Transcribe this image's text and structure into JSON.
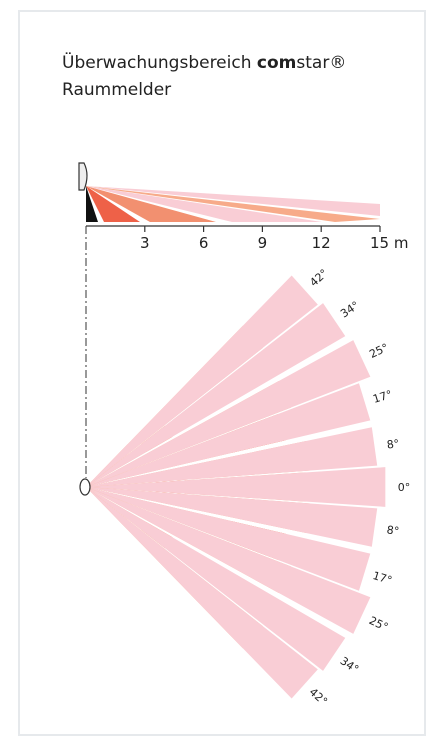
{
  "title": {
    "text": "Überwachungsbereich",
    "brand_bold": "com",
    "brand_rest": "star®",
    "line2": "Raummelder"
  },
  "side_view": {
    "xlim": [
      0,
      15
    ],
    "xticks": [
      3,
      6,
      9,
      12,
      {
        "value": 15,
        "label": "15 m"
      }
    ]
  },
  "top_view": {
    "angles": [
      {
        "value": 42,
        "label": "42°"
      },
      {
        "value": 34,
        "label": "34°"
      },
      {
        "value": 25,
        "label": "25°"
      },
      {
        "value": 17,
        "label": "17°"
      },
      {
        "value": 8,
        "label": "8°"
      },
      {
        "value": 0,
        "label": "0°"
      },
      {
        "value": -8,
        "label": "8°"
      },
      {
        "value": -17,
        "label": "17°"
      },
      {
        "value": -25,
        "label": "25°"
      },
      {
        "value": -34,
        "label": "34°"
      },
      {
        "value": -42,
        "label": "42°"
      }
    ]
  }
}
